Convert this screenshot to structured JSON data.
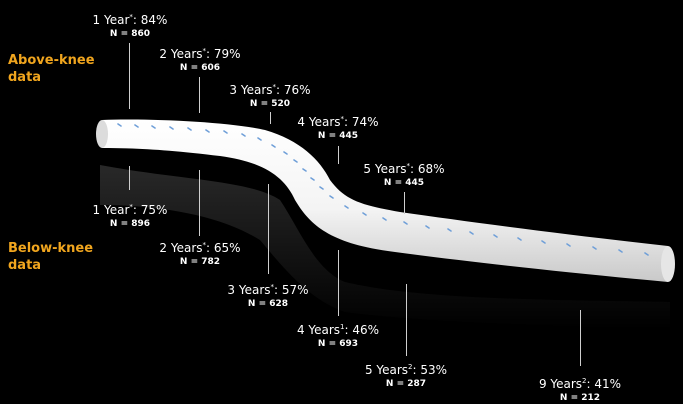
{
  "labels": {
    "above_knee": "Above-knee\ndata",
    "below_knee": "Below-knee\ndata"
  },
  "colors": {
    "background": "#000000",
    "label_accent": "#f0a51e",
    "tube": "#f2f2f2",
    "stripe": "#6f9fd8",
    "text": "#ffffff"
  },
  "above": [
    {
      "years": "1 Year",
      "mark": "*",
      "percent": "84%",
      "n": "N = 860"
    },
    {
      "years": "2 Years",
      "mark": "*",
      "percent": "79%",
      "n": "N = 606"
    },
    {
      "years": "3 Years",
      "mark": "*",
      "percent": "76%",
      "n": "N = 520"
    },
    {
      "years": "4 Years",
      "mark": "*",
      "percent": "74%",
      "n": "N = 445"
    },
    {
      "years": "5 Years",
      "mark": "*",
      "percent": "68%",
      "n": "N = 445"
    }
  ],
  "below": [
    {
      "years": "1 Year",
      "mark": "*",
      "percent": "75%",
      "n": "N = 896"
    },
    {
      "years": "2 Years",
      "mark": "*",
      "percent": "65%",
      "n": "N = 782"
    },
    {
      "years": "3 Years",
      "mark": "*",
      "percent": "57%",
      "n": "N = 628"
    },
    {
      "years": "4 Years",
      "mark": "1",
      "percent": "46%",
      "n": "N = 693"
    },
    {
      "years": "5 Years",
      "mark": "2",
      "percent": "53%",
      "n": "N = 287"
    },
    {
      "years": "9 Years",
      "mark": "2",
      "percent": "41%",
      "n": "N = 212"
    }
  ]
}
